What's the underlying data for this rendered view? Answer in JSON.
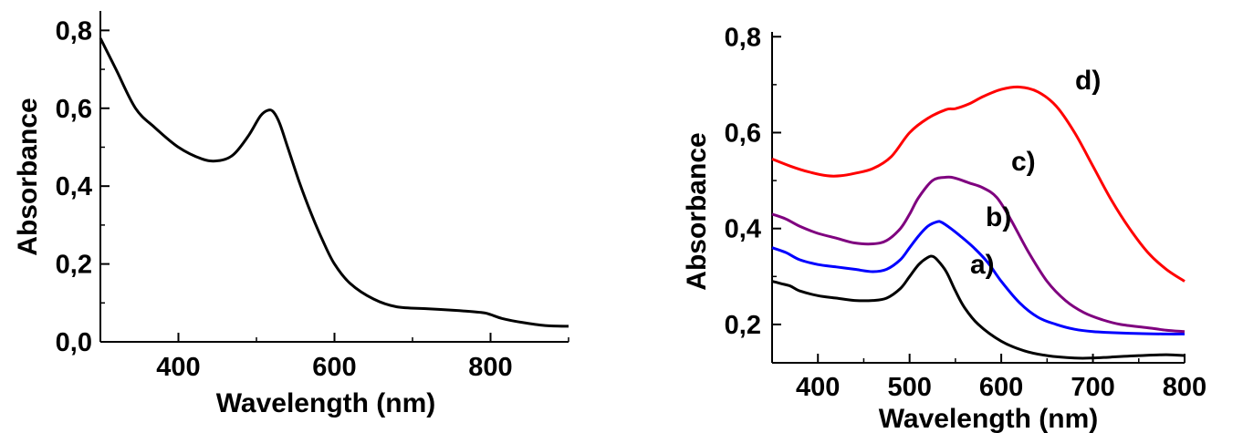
{
  "chart_data": [
    {
      "type": "line",
      "xlabel": "Wavelength (nm)",
      "ylabel": "Absorbance",
      "xlim": [
        300,
        900
      ],
      "ylim": [
        0.0,
        0.85
      ],
      "x_ticks": [
        "400",
        "600",
        "800"
      ],
      "y_ticks": [
        "0,0",
        "0,2",
        "0,4",
        "0,6",
        "0,8"
      ],
      "grid": false,
      "series": [
        {
          "color": "#000000",
          "x": [
            300,
            320,
            345,
            370,
            400,
            430,
            450,
            470,
            490,
            505,
            515,
            522,
            530,
            540,
            555,
            570,
            585,
            600,
            620,
            650,
            680,
            720,
            760,
            790,
            800,
            815,
            840,
            870,
            900
          ],
          "y": [
            0.78,
            0.7,
            0.6,
            0.55,
            0.5,
            0.47,
            0.465,
            0.48,
            0.53,
            0.58,
            0.595,
            0.59,
            0.56,
            0.5,
            0.41,
            0.33,
            0.26,
            0.2,
            0.15,
            0.11,
            0.09,
            0.085,
            0.08,
            0.075,
            0.07,
            0.06,
            0.05,
            0.042,
            0.04
          ]
        }
      ]
    },
    {
      "type": "line",
      "xlabel": "Wavelength (nm)",
      "ylabel": "Absorbance",
      "xlim": [
        350,
        800
      ],
      "ylim": [
        0.12,
        0.81
      ],
      "x_ticks": [
        "400",
        "500",
        "600",
        "700",
        "800"
      ],
      "y_ticks": [
        "0,2",
        "0,4",
        "0,6",
        "0,8"
      ],
      "grid": false,
      "series": [
        {
          "name": "a)",
          "color": "#000000",
          "x": [
            350,
            360,
            370,
            380,
            400,
            420,
            440,
            460,
            475,
            490,
            500,
            510,
            520,
            525,
            530,
            540,
            550,
            560,
            575,
            600,
            625,
            650,
            680,
            700,
            720,
            750,
            780,
            800
          ],
          "y": [
            0.29,
            0.285,
            0.28,
            0.27,
            0.26,
            0.255,
            0.25,
            0.25,
            0.255,
            0.275,
            0.3,
            0.325,
            0.34,
            0.342,
            0.335,
            0.31,
            0.27,
            0.235,
            0.2,
            0.165,
            0.145,
            0.135,
            0.13,
            0.13,
            0.132,
            0.135,
            0.137,
            0.135
          ]
        },
        {
          "name": "b)",
          "color": "#0000ff",
          "x": [
            350,
            365,
            380,
            400,
            420,
            440,
            460,
            475,
            490,
            500,
            510,
            520,
            530,
            535,
            545,
            555,
            570,
            585,
            600,
            620,
            640,
            660,
            680,
            700,
            720,
            750,
            780,
            800
          ],
          "y": [
            0.36,
            0.35,
            0.335,
            0.325,
            0.32,
            0.315,
            0.31,
            0.315,
            0.335,
            0.36,
            0.385,
            0.405,
            0.414,
            0.413,
            0.4,
            0.385,
            0.36,
            0.33,
            0.29,
            0.245,
            0.215,
            0.2,
            0.19,
            0.185,
            0.183,
            0.181,
            0.18,
            0.18
          ]
        },
        {
          "name": "c)",
          "color": "#7f007f",
          "x": [
            350,
            365,
            380,
            400,
            420,
            440,
            460,
            475,
            490,
            500,
            510,
            525,
            540,
            550,
            565,
            580,
            595,
            610,
            630,
            650,
            670,
            690,
            710,
            730,
            760,
            780,
            800
          ],
          "y": [
            0.43,
            0.42,
            0.405,
            0.39,
            0.38,
            0.37,
            0.368,
            0.375,
            0.4,
            0.43,
            0.465,
            0.5,
            0.507,
            0.505,
            0.495,
            0.485,
            0.465,
            0.42,
            0.35,
            0.29,
            0.25,
            0.225,
            0.21,
            0.2,
            0.193,
            0.188,
            0.185
          ]
        },
        {
          "name": "d)",
          "color": "#ff0000",
          "x": [
            350,
            370,
            390,
            410,
            425,
            440,
            460,
            480,
            500,
            520,
            540,
            550,
            565,
            580,
            600,
            620,
            640,
            660,
            680,
            700,
            720,
            740,
            760,
            780,
            800
          ],
          "y": [
            0.545,
            0.53,
            0.518,
            0.51,
            0.51,
            0.515,
            0.525,
            0.55,
            0.6,
            0.63,
            0.648,
            0.65,
            0.66,
            0.675,
            0.69,
            0.695,
            0.685,
            0.655,
            0.6,
            0.53,
            0.46,
            0.4,
            0.35,
            0.315,
            0.29
          ]
        }
      ]
    }
  ]
}
